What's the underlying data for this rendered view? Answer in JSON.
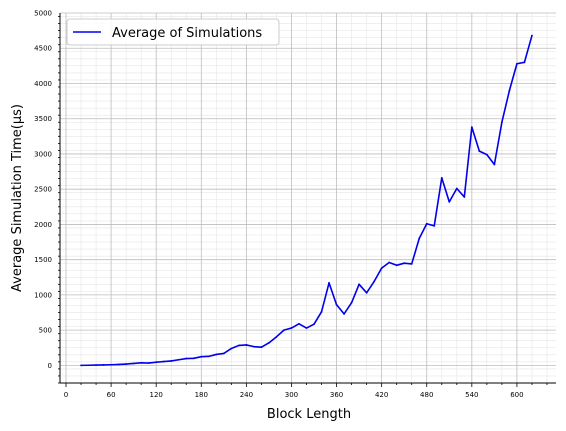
{
  "chart_data": {
    "type": "line",
    "xlabel": "Block Length",
    "ylabel": "Average Simulation Time(µs)",
    "xlim": [
      -8,
      652
    ],
    "ylim": [
      -250,
      5000
    ],
    "xticks": [
      0,
      60,
      120,
      180,
      240,
      300,
      360,
      420,
      480,
      540,
      600
    ],
    "yticks": [
      0,
      500,
      1000,
      1500,
      2000,
      2500,
      3000,
      3500,
      4000,
      4500,
      5000
    ],
    "grid": true,
    "legend_position": "top-left",
    "line_color": "#0000ee",
    "series": [
      {
        "name": "Average of Simulations",
        "x": [
          20,
          30,
          40,
          50,
          60,
          70,
          80,
          90,
          100,
          110,
          120,
          130,
          140,
          150,
          160,
          170,
          180,
          190,
          200,
          210,
          220,
          230,
          240,
          250,
          260,
          270,
          280,
          290,
          300,
          310,
          320,
          330,
          340,
          350,
          360,
          370,
          380,
          390,
          400,
          410,
          420,
          430,
          440,
          450,
          460,
          470,
          480,
          490,
          500,
          510,
          520,
          530,
          540,
          550,
          560,
          570,
          580,
          590,
          600,
          610,
          620
        ],
        "y": [
          0,
          2,
          4,
          6,
          9,
          13,
          19,
          27,
          37,
          33,
          45,
          54,
          63,
          80,
          97,
          100,
          123,
          128,
          155,
          170,
          240,
          283,
          290,
          266,
          258,
          320,
          405,
          500,
          530,
          590,
          530,
          585,
          760,
          1170,
          860,
          730,
          890,
          1150,
          1030,
          1190,
          1380,
          1460,
          1420,
          1450,
          1440,
          1800,
          2010,
          1980,
          2660,
          2320,
          2510,
          2390,
          3380,
          3040,
          2990,
          2850,
          3450,
          3900,
          4280,
          4300,
          4680
        ]
      }
    ]
  }
}
